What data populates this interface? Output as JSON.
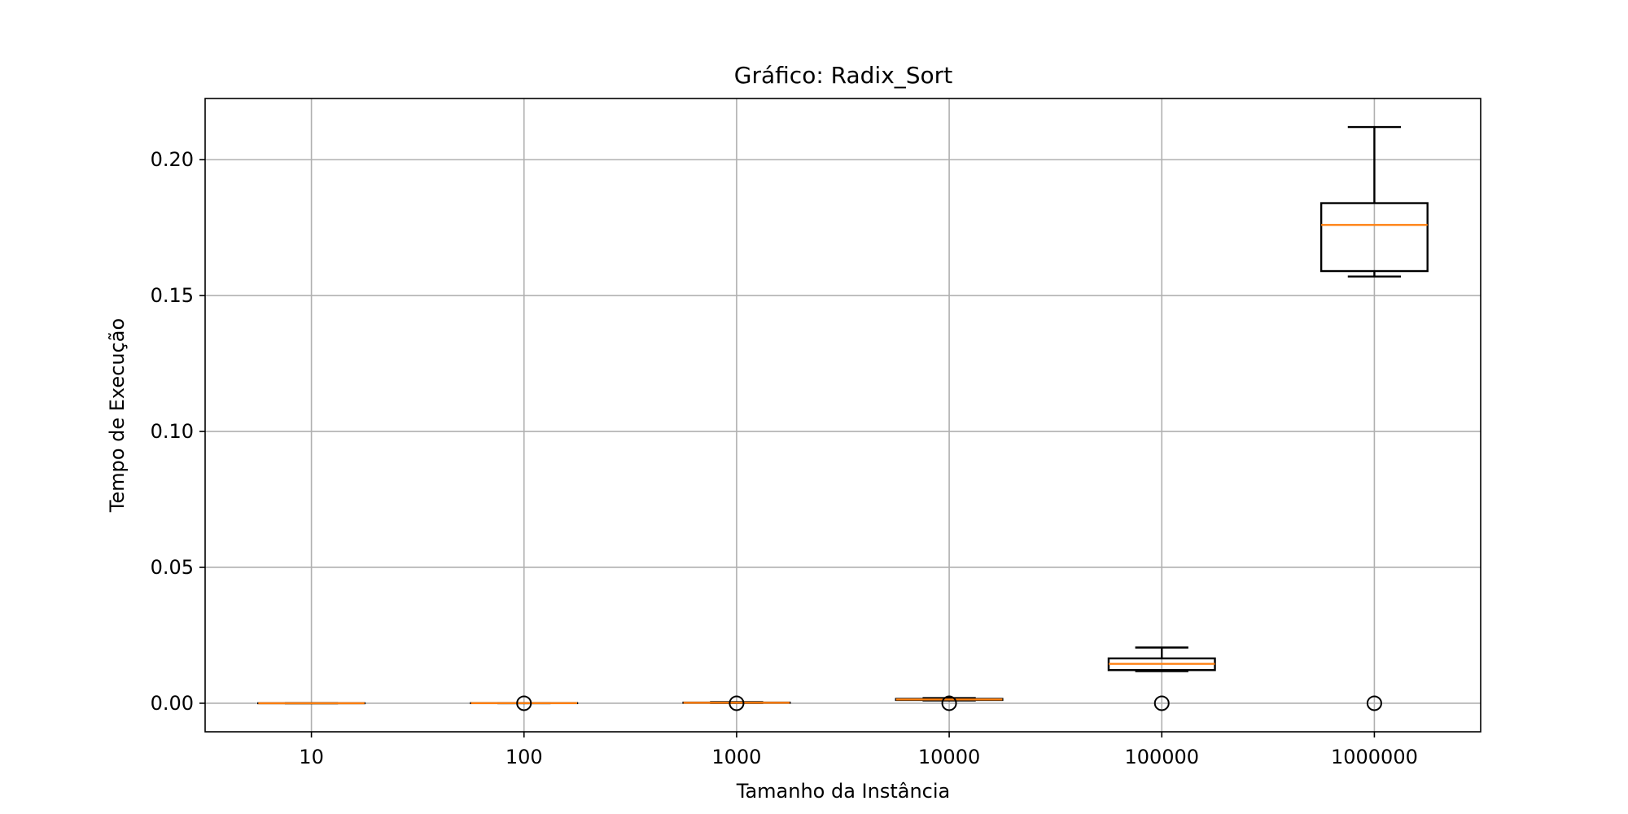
{
  "chart_data": {
    "type": "boxplot",
    "title": "Gráfico: Radix_Sort",
    "xlabel": "Tamanho da Instância",
    "ylabel": "Tempo de Execução",
    "categories": [
      "10",
      "100",
      "1000",
      "10000",
      "100000",
      "1000000"
    ],
    "ylim": [
      -0.0105,
      0.2225
    ],
    "yticks": [
      0.0,
      0.05,
      0.1,
      0.15,
      0.2
    ],
    "ytick_labels": [
      "0.00",
      "0.05",
      "0.10",
      "0.15",
      "0.20"
    ],
    "grid": true,
    "colors": {
      "box": "#000000",
      "median": "#ff7f0e",
      "grid": "#b0b0b0",
      "frame": "#000000"
    },
    "boxes": [
      {
        "category": "10",
        "whislo": 0.0,
        "q1": 0.0,
        "median": 0.0,
        "q3": 0.0,
        "whishi": 0.0,
        "fliers": []
      },
      {
        "category": "100",
        "whislo": 2e-05,
        "q1": 3e-05,
        "median": 4e-05,
        "q3": 5e-05,
        "whishi": 6e-05,
        "fliers": [
          0.0
        ]
      },
      {
        "category": "1000",
        "whislo": 0.0001,
        "q1": 0.00015,
        "median": 0.0002,
        "q3": 0.00025,
        "whishi": 0.0004,
        "fliers": [
          0.0
        ]
      },
      {
        "category": "10000",
        "whislo": 0.001,
        "q1": 0.0012,
        "median": 0.0014,
        "q3": 0.0016,
        "whishi": 0.0019,
        "fliers": [
          0.0
        ]
      },
      {
        "category": "100000",
        "whislo": 0.0118,
        "q1": 0.0122,
        "median": 0.0145,
        "q3": 0.0165,
        "whishi": 0.0205,
        "fliers": [
          0.0
        ]
      },
      {
        "category": "1000000",
        "whislo": 0.157,
        "q1": 0.159,
        "median": 0.176,
        "q3": 0.184,
        "whishi": 0.212,
        "fliers": [
          0.0
        ]
      }
    ]
  }
}
